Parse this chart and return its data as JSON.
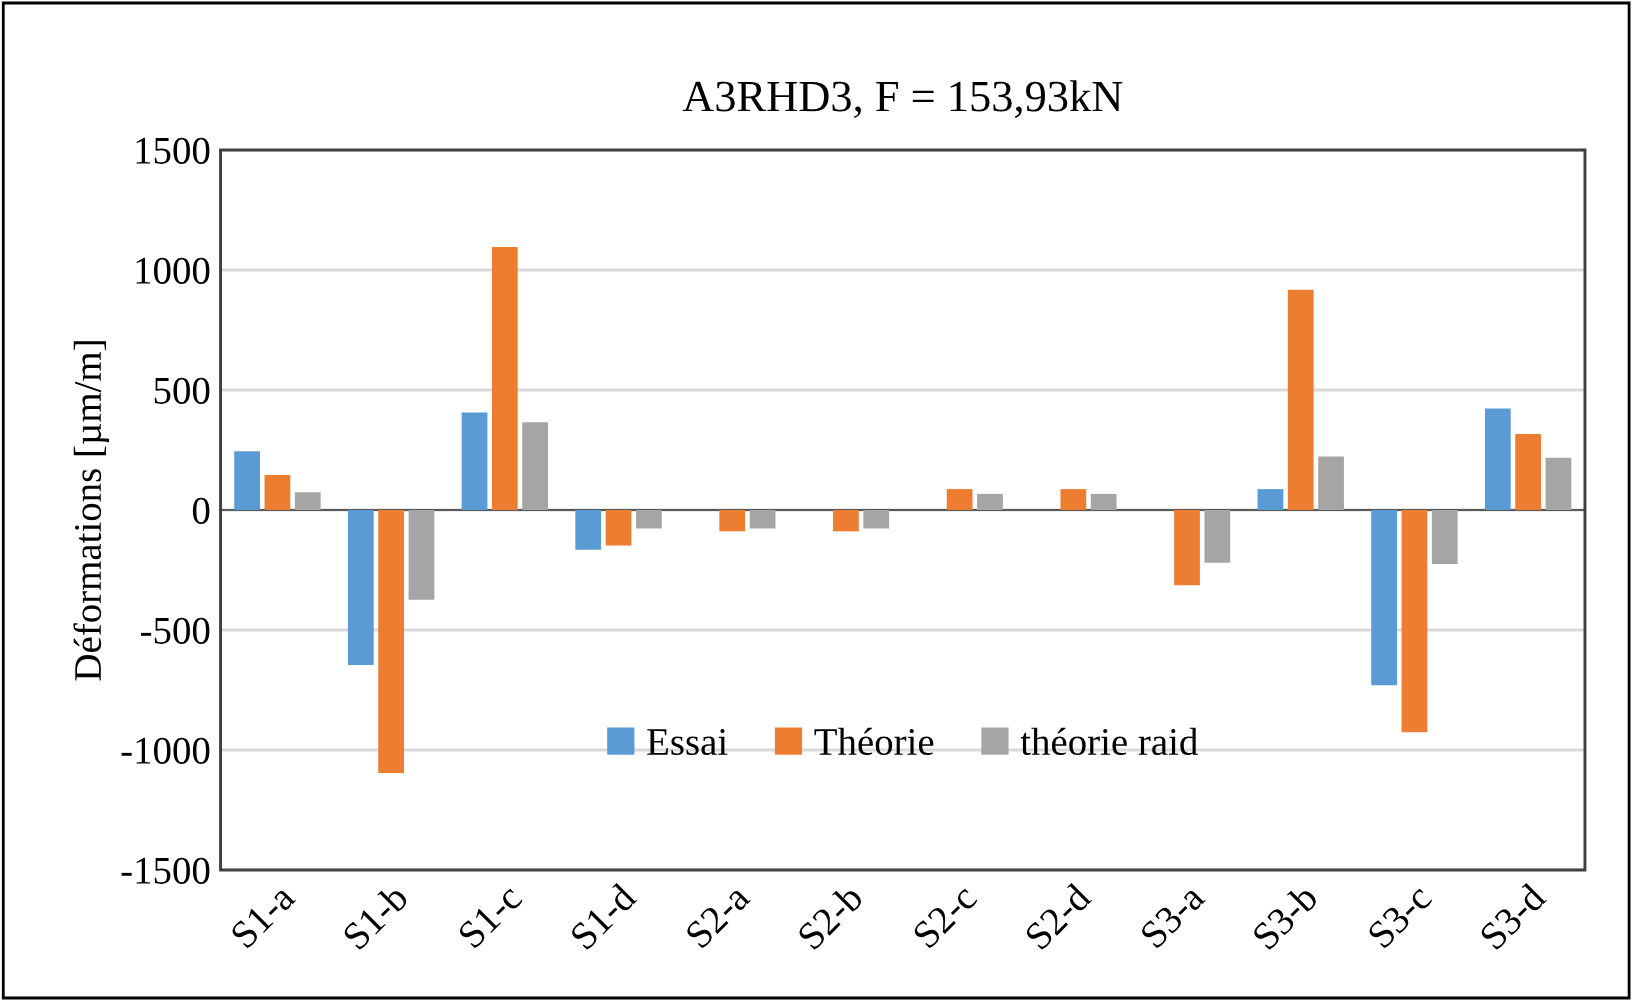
{
  "chart_data": {
    "type": "bar",
    "title": "A3RHD3, F = 153,93kN",
    "ylabel": "Déformations [µm/m]",
    "categories": [
      "S1-a",
      "S1-b",
      "S1-c",
      "S1-d",
      "S2-a",
      "S2-b",
      "S2-c",
      "S2-d",
      "S3-a",
      "S3-b",
      "S3-c",
      "S3-d"
    ],
    "series": [
      {
        "name": "Essai",
        "color": "#5b9bd5",
        "values": [
          245,
          -646,
          406,
          -166,
          null,
          null,
          null,
          null,
          null,
          87,
          -730,
          423
        ]
      },
      {
        "name": "Théorie",
        "color": "#ed7d31",
        "values": [
          146,
          -1096,
          1096,
          -148,
          -89,
          -89,
          87,
          87,
          -314,
          918,
          -926,
          317
        ]
      },
      {
        "name": "théorie raid",
        "color": "#a5a5a5",
        "values": [
          74,
          -374,
          366,
          -77,
          -77,
          -77,
          67,
          67,
          -220,
          223,
          -225,
          218
        ]
      }
    ],
    "ylim": [
      -1500,
      1500
    ],
    "yticks": [
      -1500,
      -1000,
      -500,
      0,
      500,
      1000,
      1500
    ],
    "grid": "y",
    "legend": "bottom"
  }
}
